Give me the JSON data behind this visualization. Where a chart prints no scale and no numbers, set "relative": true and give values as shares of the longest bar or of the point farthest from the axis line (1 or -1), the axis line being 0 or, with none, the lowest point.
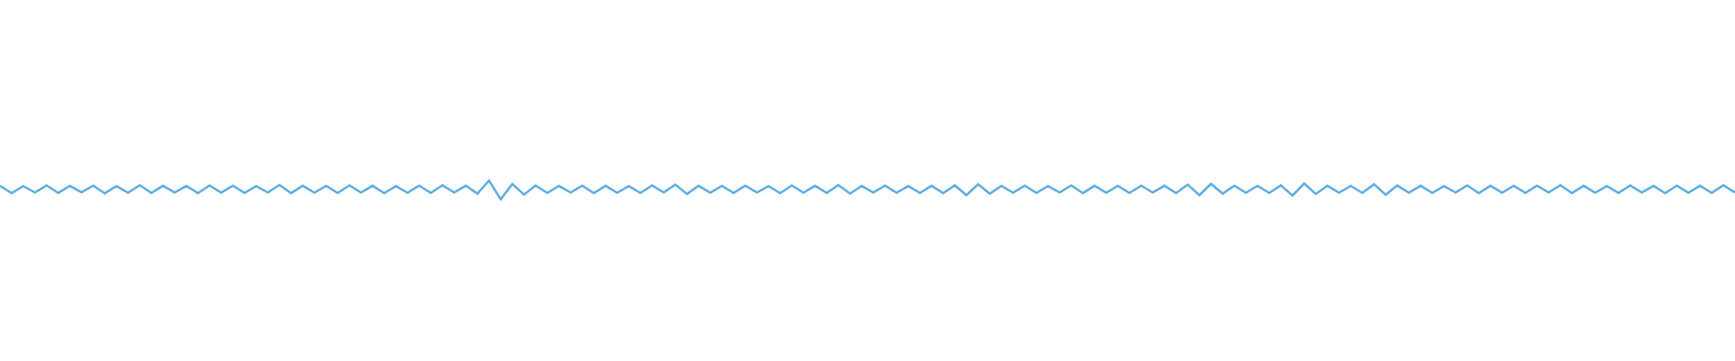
{
  "chart_data": {
    "type": "line",
    "relative": true,
    "color": "#5dade2",
    "categories": [
      null,
      null,
      null,
      null,
      null,
      null,
      null,
      null,
      null,
      null,
      null,
      null,
      null,
      null,
      null,
      null,
      null,
      null,
      null,
      null,
      null,
      null,
      null,
      null,
      null,
      null,
      null,
      null,
      null,
      null,
      null,
      null,
      null,
      null,
      null,
      null,
      null,
      null,
      null,
      null,
      null,
      null,
      null,
      null,
      null,
      null,
      null,
      null,
      null,
      null,
      null,
      null,
      null,
      null,
      null,
      null,
      null,
      null,
      null,
      null,
      null,
      null,
      null,
      null,
      null,
      null,
      null,
      null,
      null,
      null,
      null,
      null,
      null,
      null,
      null,
      null,
      null,
      null,
      null,
      null,
      null,
      null,
      null,
      null,
      null,
      null,
      null,
      null,
      null,
      null,
      null,
      null,
      null,
      null,
      null,
      null,
      null,
      null,
      null,
      null,
      null,
      null,
      null,
      null,
      null,
      null,
      null,
      null,
      null,
      null,
      null,
      null,
      null,
      null,
      null,
      null,
      null,
      null,
      null,
      null,
      null,
      null,
      null,
      null,
      null,
      null,
      null,
      null,
      null,
      null,
      null,
      null,
      null,
      null,
      null,
      null,
      null,
      null,
      null,
      null,
      null,
      null,
      null,
      null,
      null,
      null,
      null,
      null,
      null,
      null
    ],
    "values": [
      0.72,
      0.33,
      0.7,
      0.36,
      0.74,
      0.34,
      0.71,
      0.37,
      0.73,
      0.32,
      0.7,
      0.35,
      0.75,
      0.34,
      0.72,
      0.36,
      0.71,
      0.33,
      0.74,
      0.35,
      0.73,
      0.34,
      0.7,
      0.36,
      0.76,
      0.33,
      0.72,
      0.35,
      0.71,
      0.34,
      0.74,
      0.36,
      0.72,
      0.33,
      0.7,
      0.35,
      0.73,
      0.34,
      0.75,
      0.36,
      0.72,
      0.3,
      1,
      0,
      0.82,
      0.25,
      0.74,
      0.34,
      0.71,
      0.36,
      0.73,
      0.33,
      0.72,
      0.35,
      0.7,
      0.34,
      0.74,
      0.36,
      0.78,
      0.28,
      0.72,
      0.35,
      0.71,
      0.34,
      0.73,
      0.36,
      0.7,
      0.33,
      0.74,
      0.35,
      0.72,
      0.34,
      0.76,
      0.3,
      0.71,
      0.36,
      0.73,
      0.35,
      0.7,
      0.34,
      0.72,
      0.33,
      0.74,
      0.22,
      0.8,
      0.3,
      0.71,
      0.35,
      0.73,
      0.34,
      0.7,
      0.36,
      0.74,
      0.33,
      0.72,
      0.35,
      0.71,
      0.34,
      0.73,
      0.36,
      0.72,
      0.33,
      0.78,
      0.22,
      0.82,
      0.3,
      0.73,
      0.35,
      0.71,
      0.34,
      0.74,
      0.2,
      0.84,
      0.28,
      0.72,
      0.35,
      0.71,
      0.34,
      0.8,
      0.24,
      0.73,
      0.35,
      0.72,
      0.34,
      0.7,
      0.36,
      0.74,
      0.33,
      0.72,
      0.35,
      0.71,
      0.34,
      0.73,
      0.36,
      0.75,
      0.33,
      0.72,
      0.35,
      0.7,
      0.34,
      0.74,
      0.36,
      0.71,
      0.33,
      0.73,
      0.35,
      0.72,
      0.34,
      0.75,
      0.36
    ]
  }
}
